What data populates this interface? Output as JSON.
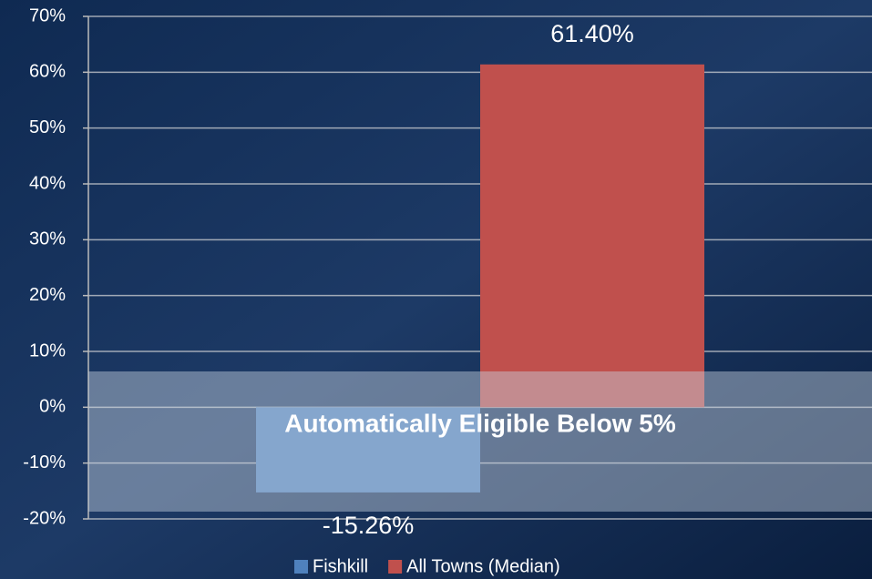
{
  "chart_data": {
    "type": "bar",
    "annotation": "Automatically Eligible Below 5%",
    "series": [
      {
        "name": "Fishkill",
        "color": "#4f81bd",
        "values": [
          -15.26
        ],
        "value_labels": [
          "-15.26%"
        ]
      },
      {
        "name": "All Towns (Median)",
        "color": "#c0504d",
        "values": [
          61.4
        ],
        "value_labels": [
          "61.40%"
        ]
      }
    ],
    "ylim": [
      -20,
      70
    ],
    "yticks": [
      {
        "value": -20,
        "label": "-20%"
      },
      {
        "value": -10,
        "label": "-10%"
      },
      {
        "value": 0,
        "label": "0%"
      },
      {
        "value": 10,
        "label": "10%"
      },
      {
        "value": 20,
        "label": "20%"
      },
      {
        "value": 30,
        "label": "30%"
      },
      {
        "value": 40,
        "label": "40%"
      },
      {
        "value": 50,
        "label": "50%"
      },
      {
        "value": 60,
        "label": "60%"
      },
      {
        "value": 70,
        "label": "70%"
      }
    ],
    "grid": true,
    "legend": "bottom"
  }
}
